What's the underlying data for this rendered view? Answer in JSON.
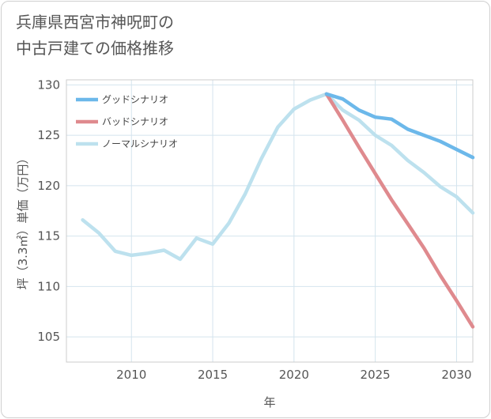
{
  "title_lines": [
    "兵庫県西宮市神呪町の",
    "中古戸建ての価格推移"
  ],
  "chart_data": {
    "type": "line",
    "title": "兵庫県西宮市神呪町の中古戸建ての価格推移",
    "xlabel": "年",
    "ylabel": "坪（3.3㎡）単価（万円）",
    "xlim": [
      2006,
      2031
    ],
    "ylim": [
      102.5,
      130.5
    ],
    "xticks": [
      2010,
      2015,
      2020,
      2025,
      2030
    ],
    "yticks": [
      105,
      110,
      115,
      120,
      125,
      130
    ],
    "grid": true,
    "legend_position": "top-left",
    "series": [
      {
        "name": "グッドシナリオ",
        "color": "#6cb8ea",
        "x": [
          2022,
          2023,
          2024,
          2025,
          2026,
          2027,
          2028,
          2029,
          2030,
          2031
        ],
        "y": [
          129.1,
          128.6,
          127.5,
          126.8,
          126.6,
          125.6,
          125.0,
          124.4,
          123.6,
          122.8
        ]
      },
      {
        "name": "バッドシナリオ",
        "color": "#df8a8e",
        "x": [
          2022,
          2023,
          2024,
          2025,
          2026,
          2027,
          2028,
          2029,
          2030,
          2031
        ],
        "y": [
          129.1,
          126.5,
          123.8,
          121.2,
          118.6,
          116.2,
          113.8,
          111.1,
          108.6,
          106.0
        ]
      },
      {
        "name": "ノーマルシナリオ",
        "color": "#bde1ee",
        "x": [
          2007,
          2008,
          2009,
          2010,
          2011,
          2012,
          2013,
          2014,
          2015,
          2016,
          2017,
          2018,
          2019,
          2020,
          2021,
          2022,
          2023,
          2024,
          2025,
          2026,
          2027,
          2028,
          2029,
          2030,
          2031
        ],
        "y": [
          116.6,
          115.3,
          113.5,
          113.1,
          113.3,
          113.6,
          112.7,
          114.8,
          114.2,
          116.3,
          119.2,
          122.7,
          125.8,
          127.6,
          128.5,
          129.1,
          127.5,
          126.5,
          125.0,
          124.0,
          122.5,
          121.3,
          119.9,
          118.9,
          117.3
        ]
      }
    ]
  }
}
